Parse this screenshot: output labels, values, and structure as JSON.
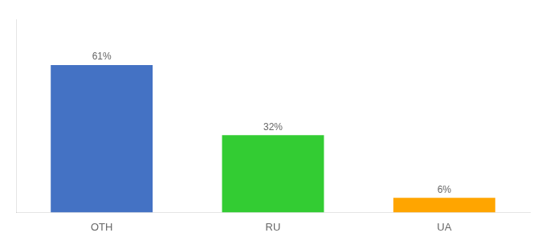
{
  "chart_data": {
    "type": "bar",
    "categories": [
      "OTH",
      "RU",
      "UA"
    ],
    "values": [
      61,
      32,
      6
    ],
    "value_labels": [
      "61%",
      "32%",
      "6%"
    ],
    "colors": [
      "#4472C4",
      "#33CC33",
      "#FFA500"
    ],
    "data_labels": true,
    "ylim": [
      0,
      80
    ],
    "grid": false,
    "tick_labels": "x"
  }
}
